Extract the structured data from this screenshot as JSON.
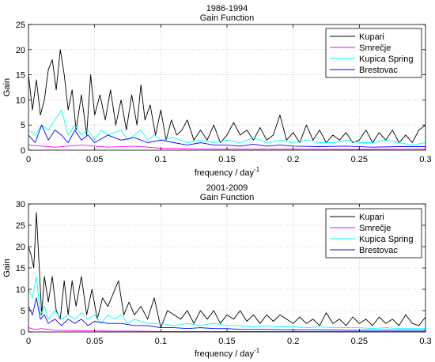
{
  "chart_data": [
    {
      "type": "line",
      "title": "1986-1994",
      "subtitle": "Gain Function",
      "xlabel": "frequency / day",
      "xlabel_sup": "-1",
      "ylabel": "Gain",
      "xlim": [
        0,
        0.3
      ],
      "ylim": [
        0,
        25
      ],
      "xticks": [
        0,
        0.05,
        0.1,
        0.15,
        0.2,
        0.25,
        0.3
      ],
      "xtick_labels": [
        "0",
        "0.05",
        "0.1",
        "0.15",
        "0.2",
        "0.25",
        "0.3"
      ],
      "yticks": [
        0,
        5,
        10,
        15,
        20,
        25
      ],
      "ytick_labels": [
        "0",
        "5",
        "10",
        "15",
        "20",
        "25"
      ],
      "grid": true,
      "legend": "top-right",
      "series": [
        {
          "name": "Kupari",
          "color": "#000000",
          "x": [
            0,
            0.003,
            0.006,
            0.009,
            0.012,
            0.015,
            0.018,
            0.021,
            0.024,
            0.027,
            0.03,
            0.033,
            0.036,
            0.04,
            0.044,
            0.047,
            0.05,
            0.054,
            0.058,
            0.062,
            0.066,
            0.07,
            0.074,
            0.078,
            0.082,
            0.085,
            0.088,
            0.092,
            0.096,
            0.1,
            0.104,
            0.108,
            0.112,
            0.116,
            0.12,
            0.125,
            0.13,
            0.135,
            0.14,
            0.145,
            0.15,
            0.155,
            0.16,
            0.165,
            0.17,
            0.175,
            0.18,
            0.185,
            0.19,
            0.195,
            0.2,
            0.205,
            0.21,
            0.215,
            0.22,
            0.225,
            0.23,
            0.235,
            0.24,
            0.245,
            0.25,
            0.255,
            0.26,
            0.265,
            0.27,
            0.275,
            0.28,
            0.285,
            0.29,
            0.295,
            0.3
          ],
          "y": [
            15,
            8,
            14,
            7,
            10,
            16,
            18,
            12,
            20,
            15,
            8,
            12,
            4,
            11,
            3,
            15,
            7,
            11,
            6,
            12,
            5,
            10,
            4,
            11,
            5,
            13,
            6,
            9,
            3,
            8,
            2,
            6,
            3,
            4,
            6,
            2,
            4,
            2,
            5,
            1.5,
            3,
            5.5,
            3,
            4,
            2,
            4.5,
            2,
            3,
            7,
            2,
            3.5,
            1.5,
            5,
            2,
            4,
            1.5,
            3,
            2,
            3.5,
            1.5,
            2,
            4,
            1.5,
            3.5,
            2,
            4,
            1.5,
            3,
            1.5,
            4,
            5
          ]
        },
        {
          "name": "Smrečje",
          "color": "#ff00ff",
          "x": [
            0,
            0.02,
            0.04,
            0.06,
            0.08,
            0.1,
            0.12,
            0.15,
            0.2,
            0.25,
            0.3
          ],
          "y": [
            1,
            0.6,
            1,
            0.6,
            0.8,
            0.4,
            0.3,
            0.2,
            0.2,
            0.15,
            0.2
          ]
        },
        {
          "name": "Kupica Spring",
          "color": "#00ffff",
          "x": [
            0,
            0.005,
            0.01,
            0.015,
            0.02,
            0.025,
            0.03,
            0.035,
            0.04,
            0.045,
            0.05,
            0.055,
            0.06,
            0.065,
            0.07,
            0.075,
            0.08,
            0.085,
            0.09,
            0.095,
            0.1,
            0.11,
            0.12,
            0.13,
            0.14,
            0.15,
            0.16,
            0.17,
            0.18,
            0.19,
            0.2,
            0.21,
            0.22,
            0.23,
            0.24,
            0.25,
            0.26,
            0.27,
            0.28,
            0.29,
            0.3
          ],
          "y": [
            4,
            3,
            5,
            4,
            6,
            8,
            3,
            5,
            3,
            4,
            2,
            4,
            3,
            3.5,
            4,
            2,
            3,
            4,
            2,
            3,
            2,
            2.5,
            1.5,
            2,
            1.5,
            2,
            1.5,
            2.5,
            1.5,
            2,
            1.5,
            2,
            1.5,
            1.5,
            2,
            1.5,
            1.5,
            2,
            1.5,
            1,
            1.5
          ]
        },
        {
          "name": "Brestovac",
          "color": "#0000ff",
          "x": [
            0,
            0.005,
            0.01,
            0.015,
            0.02,
            0.025,
            0.03,
            0.035,
            0.04,
            0.045,
            0.05,
            0.06,
            0.07,
            0.08,
            0.09,
            0.1,
            0.11,
            0.12,
            0.13,
            0.14,
            0.15,
            0.16,
            0.17,
            0.18,
            0.19,
            0.2,
            0.22,
            0.24,
            0.26,
            0.28,
            0.3
          ],
          "y": [
            3,
            1.5,
            5,
            2,
            4,
            3,
            1.5,
            4,
            2,
            3,
            1.5,
            3,
            2,
            2.5,
            1.5,
            2,
            1.5,
            1,
            1.5,
            1,
            1,
            0.8,
            1.2,
            0.8,
            1,
            0.8,
            0.7,
            0.8,
            0.6,
            0.7,
            0.7
          ]
        }
      ]
    },
    {
      "type": "line",
      "title": "2001-2009",
      "subtitle": "Gain Function",
      "xlabel": "frequency / day",
      "xlabel_sup": "-1",
      "ylabel": "Gain",
      "xlim": [
        0,
        0.3
      ],
      "ylim": [
        0,
        30
      ],
      "xticks": [
        0,
        0.05,
        0.1,
        0.15,
        0.2,
        0.25,
        0.3
      ],
      "xtick_labels": [
        "0",
        "0.05",
        "0.1",
        "0.15",
        "0.2",
        "0.25",
        "0.3"
      ],
      "yticks": [
        0,
        5,
        10,
        15,
        20,
        25,
        30
      ],
      "ytick_labels": [
        "0",
        "5",
        "10",
        "15",
        "20",
        "25",
        "30"
      ],
      "grid": true,
      "legend": "top-right",
      "series": [
        {
          "name": "Kupari",
          "color": "#000000",
          "x": [
            0,
            0.002,
            0.004,
            0.006,
            0.008,
            0.01,
            0.012,
            0.015,
            0.018,
            0.021,
            0.024,
            0.027,
            0.03,
            0.033,
            0.036,
            0.04,
            0.044,
            0.048,
            0.052,
            0.056,
            0.06,
            0.064,
            0.068,
            0.072,
            0.076,
            0.08,
            0.085,
            0.09,
            0.095,
            0.1,
            0.105,
            0.11,
            0.115,
            0.12,
            0.125,
            0.13,
            0.135,
            0.14,
            0.145,
            0.15,
            0.155,
            0.16,
            0.165,
            0.17,
            0.175,
            0.18,
            0.185,
            0.19,
            0.195,
            0.2,
            0.205,
            0.21,
            0.215,
            0.22,
            0.225,
            0.23,
            0.235,
            0.24,
            0.245,
            0.25,
            0.255,
            0.26,
            0.265,
            0.27,
            0.275,
            0.28,
            0.285,
            0.29,
            0.295,
            0.3
          ],
          "y": [
            20,
            18,
            15,
            28,
            16,
            4,
            13,
            7,
            13,
            5,
            3,
            12,
            4,
            12,
            6,
            13,
            4,
            10,
            3,
            8,
            6,
            9,
            12,
            4,
            7,
            4,
            6,
            3,
            8,
            1,
            5,
            4,
            3,
            5,
            2,
            5,
            3,
            5,
            2,
            4,
            3,
            5,
            2.5,
            4,
            2,
            4,
            2.5,
            4,
            3,
            2,
            3.5,
            2,
            3,
            1.5,
            4.5,
            2,
            3,
            1.5,
            3.5,
            2,
            3,
            1.5,
            3.5,
            2,
            3,
            1.5,
            4,
            2,
            1.5,
            3.5
          ]
        },
        {
          "name": "Smrečje",
          "color": "#ff00ff",
          "x": [
            0,
            0.005,
            0.01,
            0.02,
            0.04,
            0.06,
            0.08,
            0.1,
            0.15,
            0.2,
            0.25,
            0.3
          ],
          "y": [
            1,
            0.6,
            0.8,
            0.4,
            0.3,
            0.2,
            0.2,
            0.1,
            0.1,
            0.1,
            0.1,
            0.1
          ]
        },
        {
          "name": "Kupica Spring",
          "color": "#00ffff",
          "x": [
            0,
            0.003,
            0.006,
            0.009,
            0.012,
            0.015,
            0.02,
            0.025,
            0.03,
            0.035,
            0.04,
            0.045,
            0.05,
            0.055,
            0.06,
            0.065,
            0.07,
            0.075,
            0.08,
            0.09,
            0.1,
            0.11,
            0.12,
            0.13,
            0.14,
            0.15,
            0.16,
            0.17,
            0.18,
            0.19,
            0.2,
            0.21,
            0.22,
            0.23,
            0.24,
            0.25,
            0.26,
            0.27,
            0.28,
            0.29,
            0.3
          ],
          "y": [
            10,
            8,
            13,
            4,
            6,
            3,
            5,
            3,
            4,
            3,
            4.5,
            3,
            4,
            2,
            4,
            3,
            4,
            2,
            3,
            2,
            2,
            1.5,
            2,
            1.5,
            2,
            1.5,
            1.5,
            1.2,
            1.5,
            1.2,
            1.2,
            1,
            1.2,
            1,
            1,
            1,
            0.8,
            1,
            0.8,
            0.8,
            0.8
          ]
        },
        {
          "name": "Brestovac",
          "color": "#0000ff",
          "x": [
            0,
            0.003,
            0.006,
            0.009,
            0.012,
            0.015,
            0.02,
            0.025,
            0.03,
            0.035,
            0.04,
            0.045,
            0.05,
            0.06,
            0.07,
            0.08,
            0.09,
            0.1,
            0.11,
            0.12,
            0.13,
            0.14,
            0.15,
            0.16,
            0.18,
            0.2,
            0.22,
            0.24,
            0.26,
            0.28,
            0.3
          ],
          "y": [
            6,
            4,
            8,
            3,
            4,
            2,
            3,
            1.5,
            3,
            2,
            3,
            1.5,
            2.5,
            2,
            2,
            1.5,
            1.5,
            1,
            1,
            0.8,
            1,
            0.8,
            0.8,
            0.6,
            0.6,
            0.5,
            0.5,
            0.4,
            0.4,
            0.4,
            0.4
          ]
        }
      ]
    }
  ]
}
